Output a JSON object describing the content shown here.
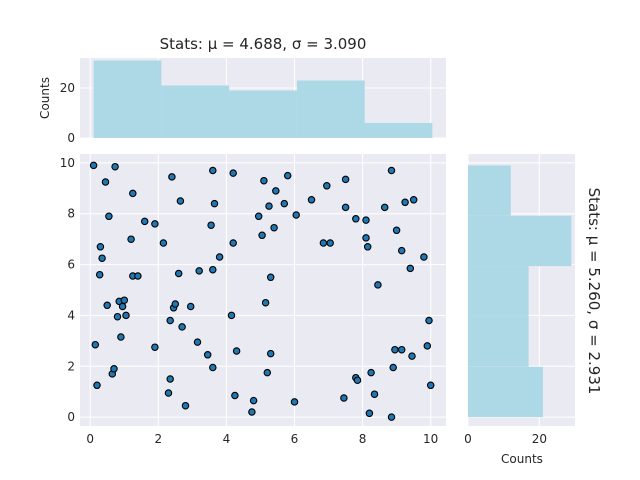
{
  "chart_data": [
    {
      "type": "bar",
      "name": "top-histogram",
      "title": "Stats: μ = 4.688, σ = 3.090",
      "ylabel": "Counts",
      "bins": [
        0.1,
        2.09,
        4.08,
        6.07,
        8.06,
        10.05
      ],
      "counts": [
        31,
        21,
        19,
        23,
        6
      ],
      "xlim": [
        -0.3,
        10.45
      ],
      "ylim": [
        0,
        32
      ],
      "yticks": [
        0,
        20
      ],
      "color": "#add8e6"
    },
    {
      "type": "scatter",
      "name": "main-scatter",
      "xlim": [
        -0.3,
        10.45
      ],
      "ylim": [
        -0.35,
        10.35
      ],
      "xticks": [
        0,
        2,
        4,
        6,
        8,
        10
      ],
      "yticks": [
        0,
        2,
        4,
        6,
        8,
        10
      ],
      "marker_color": "#1f77b4",
      "edge_color": "#000000",
      "points": [
        [
          0.1,
          9.9
        ],
        [
          0.73,
          9.85
        ],
        [
          0.45,
          9.25
        ],
        [
          0.15,
          2.85
        ],
        [
          0.2,
          1.25
        ],
        [
          0.3,
          6.7
        ],
        [
          0.35,
          6.25
        ],
        [
          0.28,
          5.6
        ],
        [
          0.5,
          4.4
        ],
        [
          0.55,
          7.9
        ],
        [
          0.65,
          1.7
        ],
        [
          0.7,
          1.9
        ],
        [
          0.8,
          3.95
        ],
        [
          0.85,
          4.55
        ],
        [
          0.9,
          3.15
        ],
        [
          0.95,
          4.35
        ],
        [
          1.0,
          4.6
        ],
        [
          1.05,
          4.0
        ],
        [
          1.2,
          7.0
        ],
        [
          1.25,
          5.55
        ],
        [
          1.25,
          8.8
        ],
        [
          1.4,
          5.55
        ],
        [
          1.6,
          7.7
        ],
        [
          1.9,
          7.6
        ],
        [
          1.9,
          2.75
        ],
        [
          2.15,
          6.85
        ],
        [
          2.3,
          0.95
        ],
        [
          2.35,
          1.5
        ],
        [
          2.35,
          3.8
        ],
        [
          2.4,
          9.45
        ],
        [
          2.45,
          4.3
        ],
        [
          2.5,
          4.45
        ],
        [
          2.6,
          5.65
        ],
        [
          2.65,
          8.5
        ],
        [
          2.7,
          3.55
        ],
        [
          2.8,
          0.45
        ],
        [
          2.95,
          4.35
        ],
        [
          3.15,
          2.95
        ],
        [
          3.2,
          5.75
        ],
        [
          3.45,
          2.45
        ],
        [
          3.55,
          7.55
        ],
        [
          3.6,
          9.7
        ],
        [
          3.6,
          1.95
        ],
        [
          3.65,
          8.4
        ],
        [
          3.6,
          5.8
        ],
        [
          3.8,
          6.3
        ],
        [
          4.15,
          4.0
        ],
        [
          4.2,
          9.6
        ],
        [
          4.2,
          6.85
        ],
        [
          4.25,
          0.85
        ],
        [
          4.3,
          2.6
        ],
        [
          4.75,
          0.2
        ],
        [
          4.8,
          0.65
        ],
        [
          4.95,
          7.9
        ],
        [
          5.05,
          7.15
        ],
        [
          5.1,
          9.3
        ],
        [
          5.15,
          4.5
        ],
        [
          5.2,
          1.75
        ],
        [
          5.25,
          8.3
        ],
        [
          5.3,
          5.5
        ],
        [
          5.3,
          2.5
        ],
        [
          5.4,
          7.45
        ],
        [
          5.45,
          8.9
        ],
        [
          5.7,
          8.4
        ],
        [
          5.8,
          9.5
        ],
        [
          6.0,
          0.6
        ],
        [
          6.05,
          7.95
        ],
        [
          6.5,
          8.55
        ],
        [
          6.85,
          6.85
        ],
        [
          6.95,
          9.1
        ],
        [
          7.05,
          6.85
        ],
        [
          7.45,
          0.75
        ],
        [
          7.5,
          9.35
        ],
        [
          7.5,
          8.25
        ],
        [
          7.8,
          1.55
        ],
        [
          7.85,
          1.45
        ],
        [
          7.8,
          7.8
        ],
        [
          8.1,
          7.75
        ],
        [
          8.1,
          7.05
        ],
        [
          8.15,
          6.7
        ],
        [
          8.2,
          0.15
        ],
        [
          8.25,
          1.75
        ],
        [
          8.35,
          0.9
        ],
        [
          8.45,
          5.2
        ],
        [
          8.65,
          8.25
        ],
        [
          8.85,
          9.7
        ],
        [
          8.85,
          0.0
        ],
        [
          8.9,
          1.95
        ],
        [
          8.95,
          2.65
        ],
        [
          9.0,
          7.35
        ],
        [
          9.15,
          2.65
        ],
        [
          9.15,
          6.55
        ],
        [
          9.25,
          8.45
        ],
        [
          9.4,
          5.85
        ],
        [
          9.45,
          2.4
        ],
        [
          9.5,
          8.55
        ],
        [
          9.8,
          6.3
        ],
        [
          9.9,
          2.8
        ],
        [
          9.95,
          3.8
        ],
        [
          10.0,
          1.25
        ]
      ]
    },
    {
      "type": "bar",
      "name": "right-histogram",
      "orientation": "horizontal",
      "title": "Stats: μ = 5.260, σ = 2.931",
      "xlabel": "Counts",
      "bins": [
        0.0,
        1.98,
        3.96,
        5.94,
        7.92,
        9.9
      ],
      "counts": [
        21,
        17,
        17,
        29,
        12
      ],
      "xlim": [
        0,
        30
      ],
      "ylim": [
        -0.35,
        10.35
      ],
      "xticks": [
        0,
        20
      ],
      "color": "#add8e6"
    }
  ]
}
